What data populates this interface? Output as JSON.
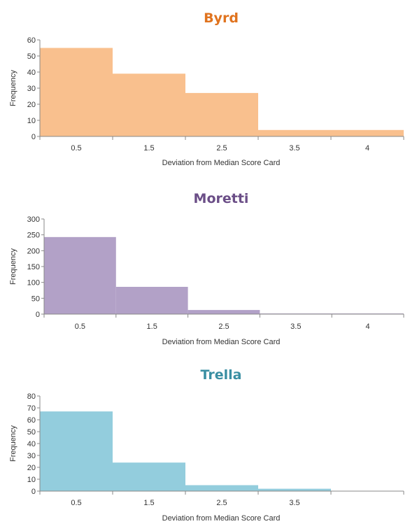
{
  "chart_data": [
    {
      "type": "bar",
      "title": "Byrd",
      "title_color": "#e0731e",
      "bar_color": "#f9c08e",
      "categories": [
        "0.5",
        "1.5",
        "2.5",
        "3.5",
        "4"
      ],
      "values": [
        55,
        39,
        27,
        4,
        4
      ],
      "xlabel": "Deviation from Median Score Card",
      "ylabel": "Frequency",
      "ylim": [
        0,
        60
      ],
      "yticks": [
        0,
        10,
        20,
        30,
        40,
        50,
        60
      ],
      "grid": false,
      "legend": "none"
    },
    {
      "type": "bar",
      "title": "Moretti",
      "title_color": "#6b4e87",
      "bar_color": "#b2a1c7",
      "categories": [
        "0.5",
        "1.5",
        "2.5",
        "3.5",
        "4"
      ],
      "values": [
        243,
        86,
        13,
        2,
        2
      ],
      "xlabel": "Deviation from Median Score Card",
      "ylabel": "Frequency",
      "ylim": [
        0,
        300
      ],
      "yticks": [
        0,
        50,
        100,
        150,
        200,
        250,
        300
      ],
      "grid": false,
      "legend": "none"
    },
    {
      "type": "bar",
      "title": "Trella",
      "title_color": "#3a8fa3",
      "bar_color": "#93cddd",
      "categories": [
        "0.5",
        "1.5",
        "2.5",
        "3.5",
        ""
      ],
      "values": [
        67,
        24,
        5,
        2,
        0
      ],
      "xlabel": "Deviation from Median Score Card",
      "ylabel": "Frequency",
      "ylim": [
        0,
        80
      ],
      "yticks": [
        0,
        10,
        20,
        30,
        40,
        50,
        60,
        70,
        80
      ],
      "grid": false,
      "legend": "none"
    }
  ]
}
